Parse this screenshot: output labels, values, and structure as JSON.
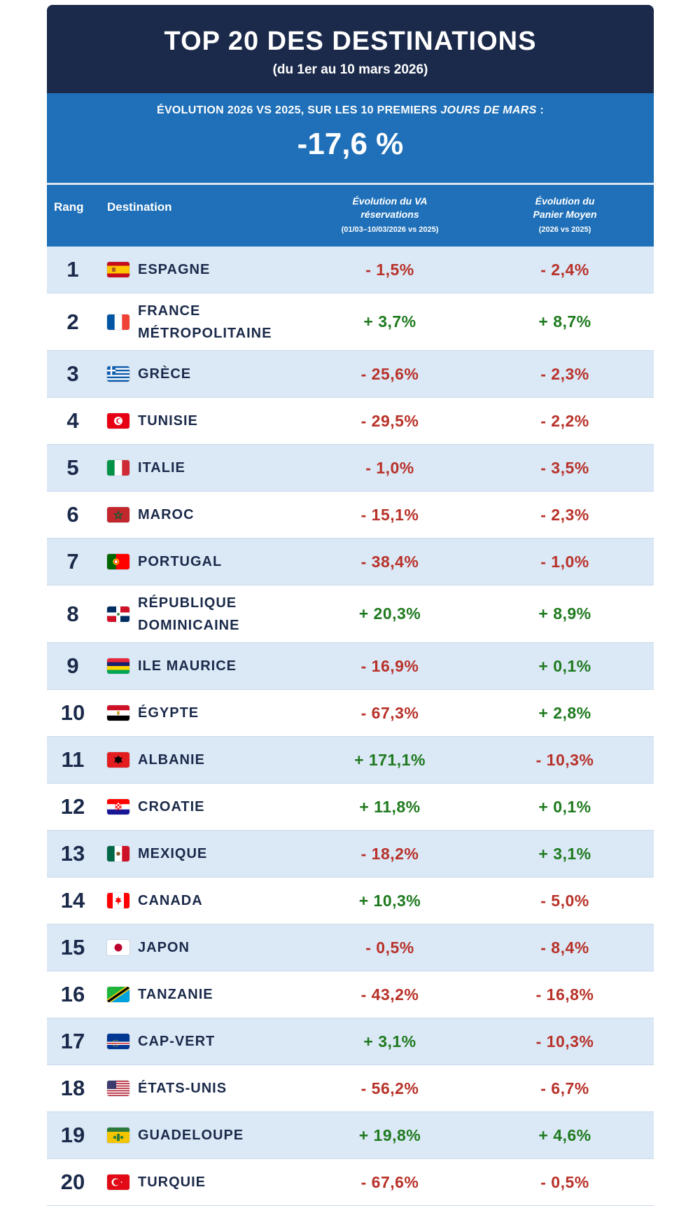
{
  "header": {
    "title": "TOP 20 DES DESTINATIONS",
    "subtitle": "(du 1er au 10 mars 2026)"
  },
  "banner": {
    "label_main": "ÉVOLUTION 2026 VS 2025, SUR LES 10 PREMIERS",
    "label_italic": "JOURS DE MARS",
    "label_end": ":",
    "value": "-17,6 %"
  },
  "columns": {
    "rang": "Rang",
    "destination": "Destination",
    "va_line1": "Évolution du VA",
    "va_line2": "réservations",
    "va_note": "(01/03–10/03/2026 vs 2025)",
    "pm_line1": "Évolution du",
    "pm_line2": "Panier Moyen",
    "pm_note": "(2026 vs 2025)"
  },
  "rows": [
    {
      "rank": "1",
      "flag": "es",
      "name": "ESPAGNE",
      "va": "- 1,5%",
      "pm": "- 2,4%"
    },
    {
      "rank": "2",
      "flag": "fr",
      "name": "FRANCE MÉTROPOLITAINE",
      "va": "+ 3,7%",
      "pm": "+ 8,7%"
    },
    {
      "rank": "3",
      "flag": "gr",
      "name": "GRÈCE",
      "va": "- 25,6%",
      "pm": "- 2,3%"
    },
    {
      "rank": "4",
      "flag": "tn",
      "name": "TUNISIE",
      "va": "- 29,5%",
      "pm": "- 2,2%"
    },
    {
      "rank": "5",
      "flag": "it",
      "name": "ITALIE",
      "va": "- 1,0%",
      "pm": "- 3,5%"
    },
    {
      "rank": "6",
      "flag": "ma",
      "name": "MAROC",
      "va": "- 15,1%",
      "pm": "- 2,3%"
    },
    {
      "rank": "7",
      "flag": "pt",
      "name": "PORTUGAL",
      "va": "- 38,4%",
      "pm": "- 1,0%"
    },
    {
      "rank": "8",
      "flag": "do",
      "name": "RÉPUBLIQUE DOMINICAINE",
      "va": "+ 20,3%",
      "pm": "+ 8,9%"
    },
    {
      "rank": "9",
      "flag": "mu",
      "name": "ILE MAURICE",
      "va": "- 16,9%",
      "pm": "+ 0,1%"
    },
    {
      "rank": "10",
      "flag": "eg",
      "name": "ÉGYPTE",
      "va": "- 67,3%",
      "pm": "+ 2,8%"
    },
    {
      "rank": "11",
      "flag": "al",
      "name": "ALBANIE",
      "va": "+ 171,1%",
      "pm": "- 10,3%"
    },
    {
      "rank": "12",
      "flag": "hr",
      "name": "CROATIE",
      "va": "+ 11,8%",
      "pm": "+ 0,1%"
    },
    {
      "rank": "13",
      "flag": "mx",
      "name": "MEXIQUE",
      "va": "- 18,2%",
      "pm": "+ 3,1%"
    },
    {
      "rank": "14",
      "flag": "ca",
      "name": "CANADA",
      "va": "+ 10,3%",
      "pm": "- 5,0%"
    },
    {
      "rank": "15",
      "flag": "jp",
      "name": "JAPON",
      "va": "- 0,5%",
      "pm": "- 8,4%"
    },
    {
      "rank": "16",
      "flag": "tz",
      "name": "TANZANIE",
      "va": "- 43,2%",
      "pm": "- 16,8%"
    },
    {
      "rank": "17",
      "flag": "cv",
      "name": "CAP-VERT",
      "va": "+ 3,1%",
      "pm": "- 10,3%"
    },
    {
      "rank": "18",
      "flag": "us",
      "name": "ÉTATS-UNIS",
      "va": "- 56,2%",
      "pm": "- 6,7%"
    },
    {
      "rank": "19",
      "flag": "gp",
      "name": "GUADELOUPE",
      "va": "+ 19,8%",
      "pm": "+ 4,6%"
    },
    {
      "rank": "20",
      "flag": "tr",
      "name": "TURQUIE",
      "va": "- 67,6%",
      "pm": "- 0,5%"
    }
  ],
  "colors": {
    "navy": "#1b2a4a",
    "blue": "#1f70b8",
    "row_alt": "#dbe8f6",
    "negative": "#b8322a",
    "positive": "#1f7a1f"
  }
}
